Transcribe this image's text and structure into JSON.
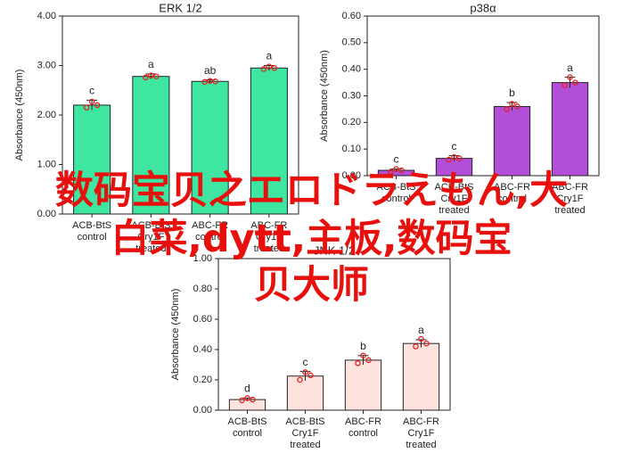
{
  "chart_data": [
    {
      "type": "bar",
      "title": "ERK 1/2",
      "ylabel": "Absorbance (450nm)",
      "color": "#3ee6a2",
      "categories": [
        [
          "ACB-BtS",
          "control"
        ],
        [
          "ACB-BtS",
          "Cry1F",
          "treated"
        ],
        [
          "ABC-FR",
          "control"
        ],
        [
          "ABC-FR",
          "Cry1F",
          "treated"
        ]
      ],
      "values": [
        2.2,
        2.78,
        2.68,
        2.95
      ],
      "errors": [
        0.1,
        0.05,
        0.03,
        0.05
      ],
      "letters": [
        "c",
        "a",
        "ab",
        "a"
      ],
      "points": [
        [
          2.15,
          2.27,
          2.2
        ],
        [
          2.76,
          2.8,
          2.78
        ],
        [
          2.67,
          2.69,
          2.68
        ],
        [
          2.93,
          2.98,
          2.95
        ]
      ],
      "ylim": [
        0,
        4
      ],
      "yticks": [
        {
          "value": 0,
          "label": "0.00"
        },
        {
          "value": 1,
          "label": "1.00"
        },
        {
          "value": 2,
          "label": "2.00"
        },
        {
          "value": 3,
          "label": "3.00"
        },
        {
          "value": 4,
          "label": "4.00"
        }
      ]
    },
    {
      "type": "bar",
      "title": "p38α",
      "ylabel": "Absorbance (450nm)",
      "color": "#b24ed8",
      "categories": [
        [
          "ACB-BtS",
          "control"
        ],
        [
          "ACB-BtS",
          "Cry1F",
          "treated"
        ],
        [
          "ABC-FR",
          "control"
        ],
        [
          "ABC-FR",
          "Cry1F",
          "treated"
        ]
      ],
      "values": [
        0.02,
        0.065,
        0.26,
        0.35
      ],
      "errors": [
        0.005,
        0.01,
        0.015,
        0.02
      ],
      "letters": [
        "c",
        "c",
        "b",
        "a"
      ],
      "points": [
        [
          0.015,
          0.025,
          0.02
        ],
        [
          0.06,
          0.07,
          0.065
        ],
        [
          0.25,
          0.27,
          0.26
        ],
        [
          0.34,
          0.37,
          0.35
        ]
      ],
      "ylim": [
        0,
        0.6
      ],
      "yticks": [
        {
          "value": 0,
          "label": "0.00"
        },
        {
          "value": 0.1,
          "label": "0.10"
        },
        {
          "value": 0.2,
          "label": "0.20"
        },
        {
          "value": 0.3,
          "label": "0.30"
        },
        {
          "value": 0.4,
          "label": "0.40"
        },
        {
          "value": 0.5,
          "label": "0.50"
        },
        {
          "value": 0.6,
          "label": "0.60"
        }
      ]
    },
    {
      "type": "bar",
      "title": "JNK 1/2",
      "ylabel": "Absorbance (450nm)",
      "color": "#fde2dd",
      "categories": [
        [
          "ACB-BtS",
          "control"
        ],
        [
          "ACB-BtS",
          "Cry1F",
          "treated"
        ],
        [
          "ABC-FR",
          "control"
        ],
        [
          "ABC-FR",
          "Cry1F",
          "treated"
        ]
      ],
      "values": [
        0.07,
        0.225,
        0.33,
        0.44
      ],
      "errors": [
        0.01,
        0.03,
        0.03,
        0.025
      ],
      "letters": [
        "d",
        "c",
        "b",
        "a"
      ],
      "points": [
        [
          0.065,
          0.08,
          0.07
        ],
        [
          0.2,
          0.25,
          0.23
        ],
        [
          0.31,
          0.36,
          0.33
        ],
        [
          0.42,
          0.47,
          0.44
        ]
      ],
      "ylim": [
        0,
        1
      ],
      "yticks": [
        {
          "value": 0,
          "label": "0.00"
        },
        {
          "value": 0.2,
          "label": "0.20"
        },
        {
          "value": 0.4,
          "label": "0.40"
        },
        {
          "value": 0.6,
          "label": "0.60"
        },
        {
          "value": 0.8,
          "label": "0.80"
        },
        {
          "value": 1,
          "label": "1.00"
        }
      ]
    }
  ],
  "overlay_text": [
    "数码宝贝之エロドラえもん,大",
    "白菜,dytt,主板,数码宝",
    "贝大师"
  ]
}
